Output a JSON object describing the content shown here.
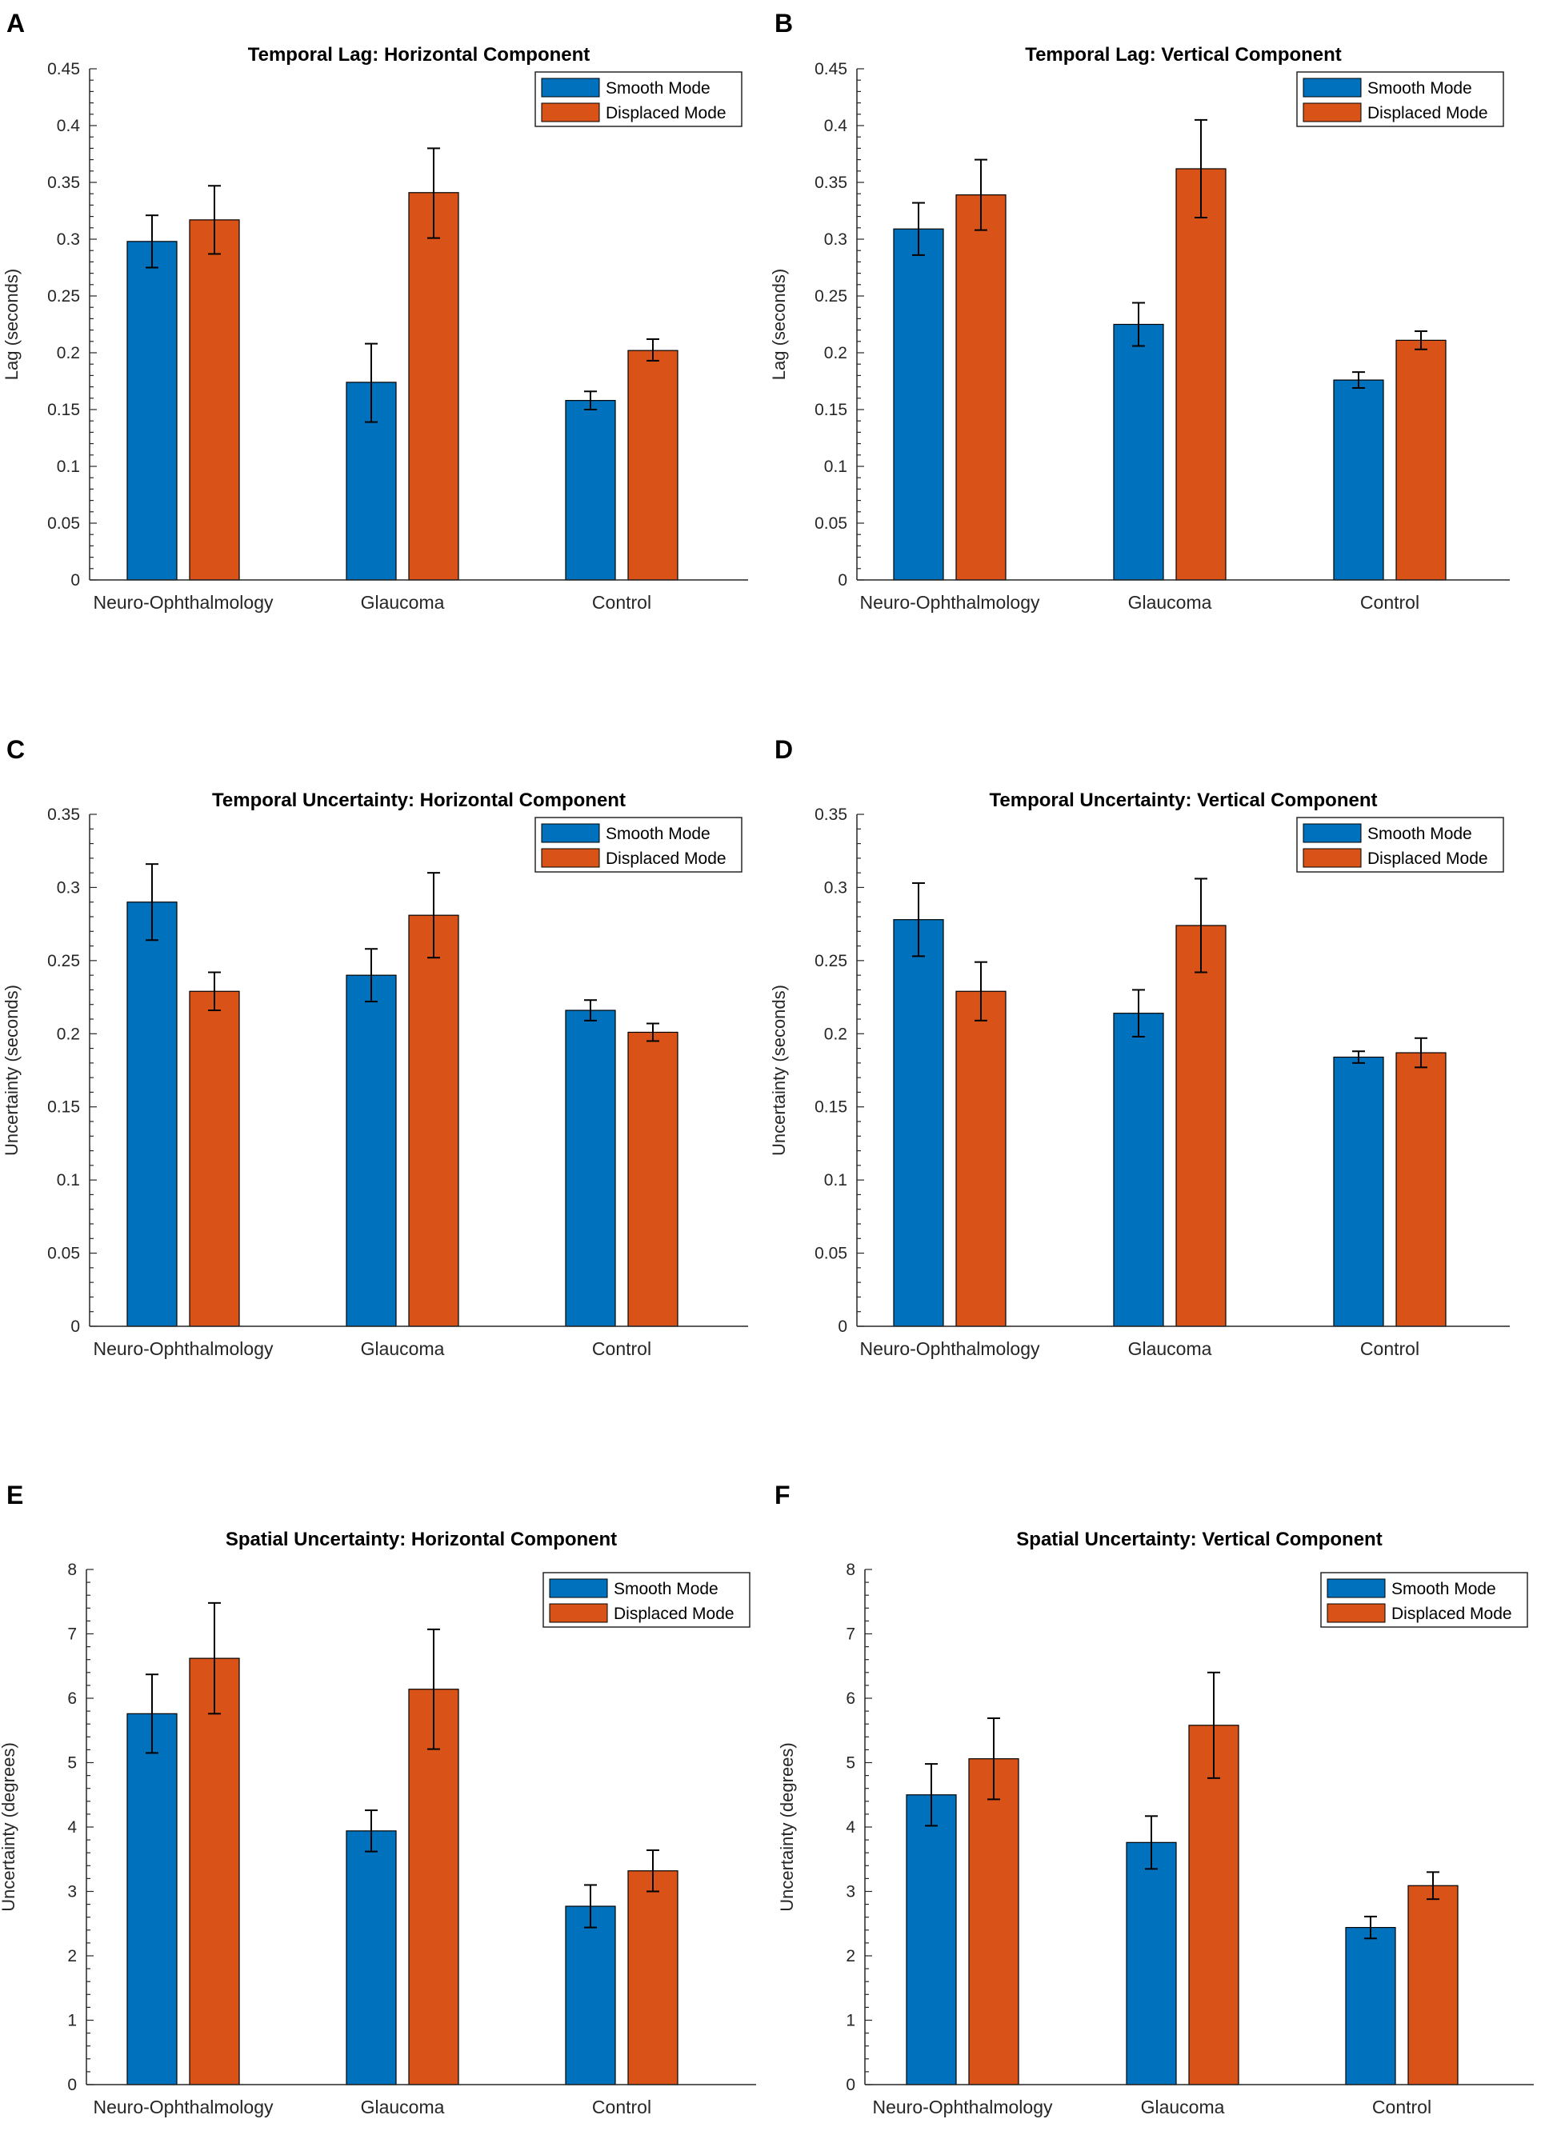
{
  "legend": {
    "series": [
      "Smooth Mode",
      "Displaced Mode"
    ],
    "colors": [
      "#0072bd",
      "#d95319"
    ]
  },
  "chart_data": [
    {
      "panel": "A",
      "type": "bar",
      "title": "Temporal Lag: Horizontal Component",
      "xlabel": "",
      "ylabel": "Lag (seconds)",
      "ylim": [
        0,
        0.45
      ],
      "yticks": [
        "0",
        "0.05",
        "0.1",
        "0.15",
        "0.2",
        "0.25",
        "0.3",
        "0.35",
        "0.4",
        "0.45"
      ],
      "categories": [
        "Neuro-Ophthalmology",
        "Glaucoma",
        "Control"
      ],
      "series": [
        {
          "name": "Smooth Mode",
          "values": [
            0.298,
            0.174,
            0.158
          ],
          "err_low": [
            0.275,
            0.139,
            0.15
          ],
          "err_high": [
            0.321,
            0.208,
            0.166
          ]
        },
        {
          "name": "Displaced Mode",
          "values": [
            0.317,
            0.341,
            0.202
          ],
          "err_low": [
            0.287,
            0.301,
            0.193
          ],
          "err_high": [
            0.347,
            0.38,
            0.212
          ]
        }
      ]
    },
    {
      "panel": "B",
      "type": "bar",
      "title": "Temporal Lag: Vertical Component",
      "xlabel": "",
      "ylabel": "Lag (seconds)",
      "ylim": [
        0,
        0.45
      ],
      "yticks": [
        "0",
        "0.05",
        "0.1",
        "0.15",
        "0.2",
        "0.25",
        "0.3",
        "0.35",
        "0.4",
        "0.45"
      ],
      "categories": [
        "Neuro-Ophthalmology",
        "Glaucoma",
        "Control"
      ],
      "series": [
        {
          "name": "Smooth Mode",
          "values": [
            0.309,
            0.225,
            0.176
          ],
          "err_low": [
            0.286,
            0.206,
            0.169
          ],
          "err_high": [
            0.332,
            0.244,
            0.183
          ]
        },
        {
          "name": "Displaced Mode",
          "values": [
            0.339,
            0.362,
            0.211
          ],
          "err_low": [
            0.308,
            0.319,
            0.203
          ],
          "err_high": [
            0.37,
            0.405,
            0.219
          ]
        }
      ]
    },
    {
      "panel": "C",
      "type": "bar",
      "title": "Temporal Uncertainty: Horizontal Component",
      "xlabel": "",
      "ylabel": "Uncertainty (seconds)",
      "ylim": [
        0,
        0.35
      ],
      "yticks": [
        "0",
        "0.05",
        "0.1",
        "0.15",
        "0.2",
        "0.25",
        "0.3",
        "0.35"
      ],
      "categories": [
        "Neuro-Ophthalmology",
        "Glaucoma",
        "Control"
      ],
      "series": [
        {
          "name": "Smooth Mode",
          "values": [
            0.29,
            0.24,
            0.216
          ],
          "err_low": [
            0.264,
            0.222,
            0.209
          ],
          "err_high": [
            0.316,
            0.258,
            0.223
          ]
        },
        {
          "name": "Displaced Mode",
          "values": [
            0.229,
            0.281,
            0.201
          ],
          "err_low": [
            0.216,
            0.252,
            0.195
          ],
          "err_high": [
            0.242,
            0.31,
            0.207
          ]
        }
      ]
    },
    {
      "panel": "D",
      "type": "bar",
      "title": "Temporal Uncertainty: Vertical Component",
      "xlabel": "",
      "ylabel": "Uncertainty (seconds)",
      "ylim": [
        0,
        0.35
      ],
      "yticks": [
        "0",
        "0.05",
        "0.1",
        "0.15",
        "0.2",
        "0.25",
        "0.3",
        "0.35"
      ],
      "categories": [
        "Neuro-Ophthalmology",
        "Glaucoma",
        "Control"
      ],
      "series": [
        {
          "name": "Smooth Mode",
          "values": [
            0.278,
            0.214,
            0.184
          ],
          "err_low": [
            0.253,
            0.198,
            0.18
          ],
          "err_high": [
            0.303,
            0.23,
            0.188
          ]
        },
        {
          "name": "Displaced Mode",
          "values": [
            0.229,
            0.274,
            0.187
          ],
          "err_low": [
            0.209,
            0.242,
            0.177
          ],
          "err_high": [
            0.249,
            0.306,
            0.197
          ]
        }
      ]
    },
    {
      "panel": "E",
      "type": "bar",
      "title": "Spatial Uncertainty: Horizontal Component",
      "xlabel": "",
      "ylabel": "Uncertainty (degrees)",
      "ylim": [
        0,
        8
      ],
      "yticks": [
        "0",
        "1",
        "2",
        "3",
        "4",
        "5",
        "6",
        "7",
        "8"
      ],
      "categories": [
        "Neuro-Ophthalmology",
        "Glaucoma",
        "Control"
      ],
      "series": [
        {
          "name": "Smooth Mode",
          "values": [
            5.76,
            3.94,
            2.77
          ],
          "err_low": [
            5.15,
            3.62,
            2.44
          ],
          "err_high": [
            6.37,
            4.26,
            3.1
          ]
        },
        {
          "name": "Displaced Mode",
          "values": [
            6.62,
            6.14,
            3.32
          ],
          "err_low": [
            5.76,
            5.21,
            3.0
          ],
          "err_high": [
            7.48,
            7.07,
            3.64
          ]
        }
      ]
    },
    {
      "panel": "F",
      "type": "bar",
      "title": "Spatial Uncertainty: Vertical Component",
      "xlabel": "",
      "ylabel": "Uncertainty (degrees)",
      "ylim": [
        0,
        8
      ],
      "yticks": [
        "0",
        "1",
        "2",
        "3",
        "4",
        "5",
        "6",
        "7",
        "8"
      ],
      "categories": [
        "Neuro-Ophthalmology",
        "Glaucoma",
        "Control"
      ],
      "series": [
        {
          "name": "Smooth Mode",
          "values": [
            4.5,
            3.76,
            2.44
          ],
          "err_low": [
            4.02,
            3.35,
            2.27
          ],
          "err_high": [
            4.98,
            4.17,
            2.61
          ]
        },
        {
          "name": "Displaced Mode",
          "values": [
            5.06,
            5.58,
            3.09
          ],
          "err_low": [
            4.43,
            4.76,
            2.88
          ],
          "err_high": [
            5.69,
            6.4,
            3.3
          ]
        }
      ]
    }
  ]
}
